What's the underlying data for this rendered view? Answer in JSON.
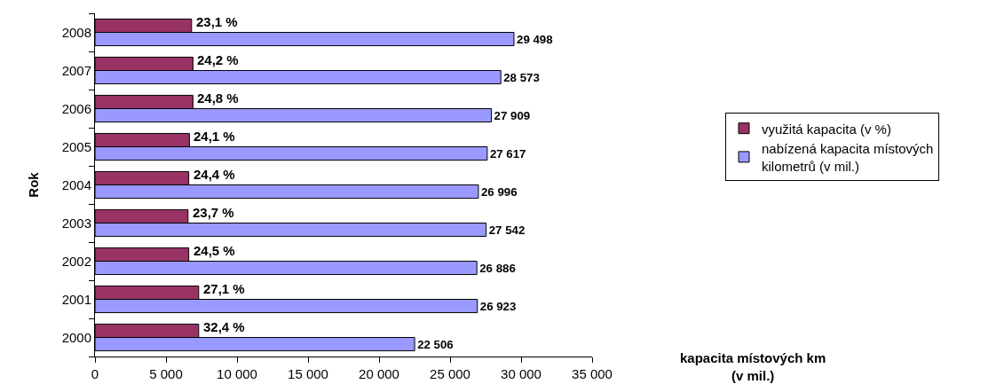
{
  "chart_data": {
    "type": "bar",
    "orientation": "horizontal",
    "categories": [
      "2008",
      "2007",
      "2006",
      "2005",
      "2004",
      "2003",
      "2002",
      "2001",
      "2000"
    ],
    "series": [
      {
        "name": "využitá kapacita (v %)",
        "color": "#993366",
        "values": [
          6800,
          6900,
          6900,
          6650,
          6600,
          6550,
          6600,
          7300,
          7300
        ]
      },
      {
        "name": "nabízená kapacita místových kilometrů (v mil.)",
        "color": "#9999ff",
        "values": [
          29498,
          28573,
          27909,
          27617,
          26996,
          27542,
          26886,
          26923,
          22506
        ],
        "value_labels": [
          "29 498",
          "28 573",
          "27 909",
          "27 617",
          "26 996",
          "27 542",
          "26 886",
          "26 923",
          "22 506"
        ]
      }
    ],
    "xlim": [
      0,
      35000
    ],
    "xticks": [
      0,
      {
        "value": 5000,
        "label": "5 000"
      },
      {
        "value": 10000,
        "label": "10 000"
      },
      {
        "value": 15000,
        "label": "15 000"
      },
      {
        "value": 20000,
        "label": "20 000"
      },
      {
        "value": 25000,
        "label": "25 000"
      },
      {
        "value": 30000,
        "label": "30 000"
      },
      {
        "value": 35000,
        "label": "35 000"
      }
    ],
    "ylabel": "Rok",
    "legend": "right",
    "grid": false,
    "annotations": [
      {
        "text": "23,1 %",
        "x": 6800,
        "y": "2008"
      },
      {
        "text": "24,2 %",
        "x": 6900,
        "y": "2007"
      },
      {
        "text": "24,8 %",
        "x": 6900,
        "y": "2006"
      },
      {
        "text": "24,1 %",
        "x": 6650,
        "y": "2005"
      },
      {
        "text": "24,4 %",
        "x": 6600,
        "y": "2004"
      },
      {
        "text": "23,7 %",
        "x": 6550,
        "y": "2003"
      },
      {
        "text": "24,5 %",
        "x": 6600,
        "y": "2002"
      },
      {
        "text": "27,1 %",
        "x": 7300,
        "y": "2001"
      },
      {
        "text": "32,4 %",
        "x": 7300,
        "y": "2000"
      },
      "kapacita místových km (v mil.)"
    ]
  }
}
